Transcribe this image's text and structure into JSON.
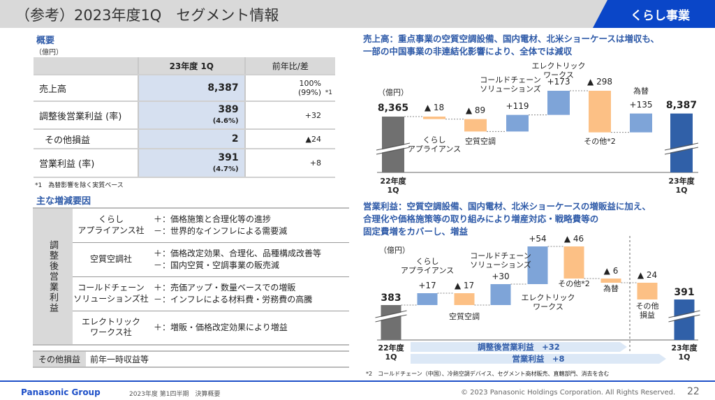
{
  "header": {
    "title": "（参考）2023年度1Q　セグメント情報",
    "tab": "くらし事業"
  },
  "summary": {
    "heading": "概要",
    "unit": "（億円）",
    "col1": "23年度 1Q",
    "col2": "前年比/差",
    "rows": [
      {
        "label": "売上高",
        "value": "8,387",
        "sub": "",
        "diff": "100%",
        "diff2": "(99%)",
        "note": "*1"
      },
      {
        "label": "調整後営業利益 (率)",
        "value": "389",
        "sub": "(4.6%)",
        "diff": "+32"
      },
      {
        "label": "その他損益",
        "value": "2",
        "sub": "",
        "diff": "▲24"
      },
      {
        "label": "営業利益 (率)",
        "value": "391",
        "sub": "(4.7%)",
        "diff": "+8"
      }
    ],
    "footnote": "*1　為替影響を除く実質ベース"
  },
  "factors": {
    "heading": "主な増減要因",
    "group_label": "調整後営業利益",
    "rows": [
      {
        "name": "くらし\nアプライアンス社",
        "lines": [
          "＋：価格施策と合理化等の進捗",
          "－：世界的なインフレによる需要減"
        ]
      },
      {
        "name": "空質空調社",
        "lines": [
          "＋：価格改定効果、合理化、品種構成改善等",
          "－：国内空質・空調事業の販売減"
        ]
      },
      {
        "name": "コールドチェーン\nソリューションズ社",
        "lines": [
          "＋：売価アップ・数量ベースでの増販",
          "－：インフレによる材料費・労務費の高騰"
        ]
      },
      {
        "name": "エレクトリック\nワークス社",
        "lines": [
          "＋：増販・価格改定効果により増益"
        ]
      }
    ],
    "other_label": "その他損益",
    "other_text": "前年一時収益等"
  },
  "chart_data": [
    {
      "type": "waterfall",
      "title": "売上高：重点事業の空質空調設備、国内電材、北米ショーケースは増収も、\n一部の中国事業の非連結化影響により、全体では減収",
      "unit": "（億円）",
      "categories": [
        "22年度\n1Q",
        "くらし\nアプライアンス",
        "空質空調",
        "コールドチェーン\nソリューションズ",
        "エレクトリック\nワークス",
        "その他*2",
        "為替",
        "23年度\n1Q"
      ],
      "values": [
        8365,
        -18,
        -89,
        119,
        173,
        -298,
        135,
        8387
      ],
      "labels": [
        "8,365",
        "▲ 18",
        "▲ 89",
        "+119",
        "+173",
        "▲ 298",
        "+135",
        "8,387"
      ]
    },
    {
      "type": "waterfall",
      "title": "営業利益：空質空調設備、国内電材、北米ショーケースの増販益に加え、\n合理化や価格施策等の取り組みにより増産対応・戦略費等の\n固定費増をカバーし、増益",
      "unit": "（億円）",
      "categories": [
        "22年度\n1Q",
        "くらし\nアプライアンス",
        "空質空調",
        "コールドチェーン\nソリューションズ",
        "エレクトリック\nワークス",
        "その他*2",
        "為替",
        "その他\n損益",
        "23年度\n1Q"
      ],
      "values": [
        383,
        17,
        -17,
        30,
        54,
        -46,
        -6,
        -24,
        391
      ],
      "labels": [
        "383",
        "+17",
        "▲ 17",
        "+30",
        "+54",
        "▲ 46",
        "▲ 6",
        "▲ 24",
        "391"
      ],
      "arrows": [
        "調整後営業利益　+32",
        "営業利益　+8"
      ]
    }
  ],
  "colors": {
    "increase": "#7ea4d8",
    "decrease": "#fcc085",
    "start": "#707070",
    "end": "#3060a8",
    "accent": "#0a46c8"
  },
  "chart_footnote": "*2　コールドチェーン（中国）、冷熱空調デバイス、セグメント商材販売、直轄部門、消去を含む",
  "footer": {
    "brand": "Panasonic Group",
    "doc": "2023年度 第1四半期　決算概要",
    "copyright": "© 2023 Panasonic Holdings Corporation. All Rights Reserved.",
    "page": "22"
  }
}
